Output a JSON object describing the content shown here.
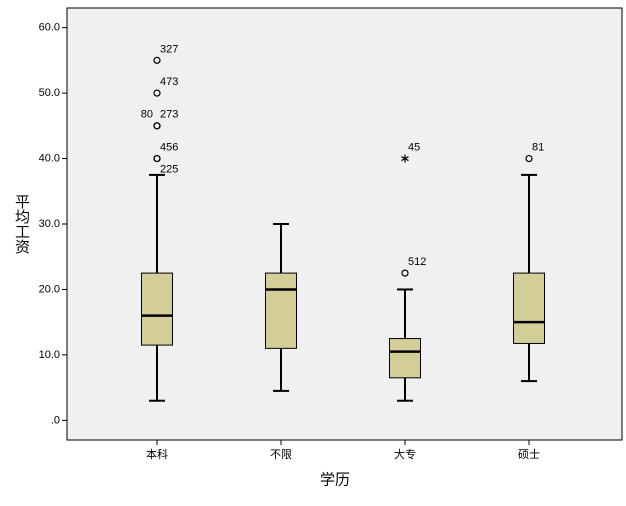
{
  "chart_data": {
    "type": "boxplot",
    "x_label": "学历",
    "y_label": "平均工资",
    "categories": [
      "本科",
      "不限",
      "大专",
      "硕士"
    ],
    "color": "#d3ce98",
    "ylim": [
      -3,
      63
    ],
    "yticks": [
      {
        "value": 0,
        "label": ".0"
      },
      {
        "value": 10,
        "label": "10.0"
      },
      {
        "value": 20,
        "label": "20.0"
      },
      {
        "value": 30,
        "label": "30.0"
      },
      {
        "value": 40,
        "label": "40.0"
      },
      {
        "value": 50,
        "label": "50.0"
      },
      {
        "value": 60,
        "label": "60.0"
      }
    ],
    "boxes": [
      {
        "min": 3,
        "q1": 11.5,
        "median": 16,
        "q3": 22.5,
        "max": 37.5,
        "outliers": [
          {
            "value": 55,
            "label": "327",
            "marker": "circle"
          },
          {
            "value": 50,
            "label": "473",
            "marker": "circle"
          },
          {
            "value": 45,
            "label": "80",
            "marker": "circle"
          },
          {
            "value": 45,
            "label": "273",
            "marker": "circle"
          },
          {
            "value": 40,
            "label": "456",
            "marker": "circle"
          },
          {
            "value": 40,
            "label": "225",
            "marker": "circle"
          }
        ]
      },
      {
        "min": 4.5,
        "q1": 11,
        "median": 20,
        "q3": 22.5,
        "max": 30,
        "outliers": []
      },
      {
        "min": 3,
        "q1": 6.5,
        "median": 10.5,
        "q3": 12.5,
        "max": 20,
        "outliers": [
          {
            "value": 22.5,
            "label": "512",
            "marker": "circle"
          },
          {
            "value": 40,
            "label": "45",
            "marker": "star"
          }
        ]
      },
      {
        "min": 6,
        "q1": 11.75,
        "median": 15,
        "q3": 22.5,
        "max": 37.5,
        "outliers": [
          {
            "value": 40,
            "label": "81",
            "marker": "circle"
          }
        ]
      }
    ]
  }
}
